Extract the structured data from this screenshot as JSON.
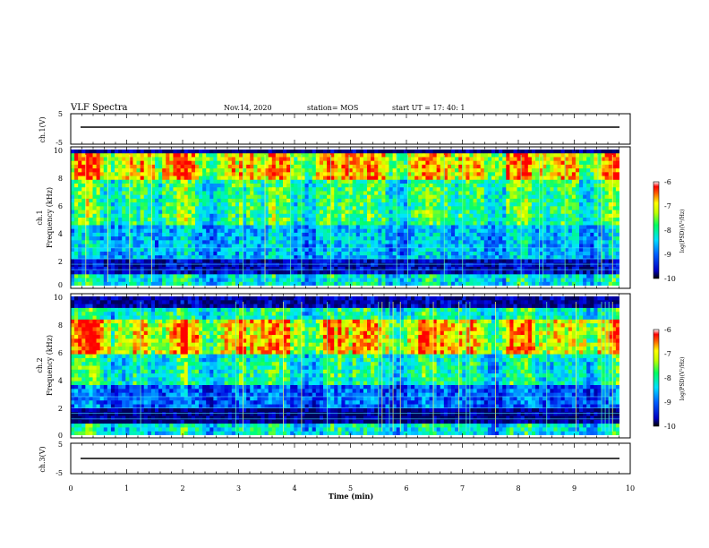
{
  "header": {
    "title": "VLF Spectra",
    "date": "Nov.14, 2020",
    "station": "station= MOS",
    "start": "start  UT =  17: 40: 1"
  },
  "chart_data": [
    {
      "type": "line",
      "panel": "ch1-waveform",
      "ylabel": "ch.1(V)",
      "ylim": [
        -5,
        5
      ],
      "y_ticks": [
        "5",
        "-5"
      ],
      "x": [
        0,
        9.83
      ],
      "values": [
        0,
        0
      ]
    },
    {
      "type": "heatmap",
      "panel": "ch1-spectrogram",
      "ylabel_line1": "ch.1",
      "ylabel_line2": "Frequency  (kHz)",
      "ylim": [
        0,
        10
      ],
      "y_ticks": [
        "0",
        "2",
        "4",
        "6",
        "8",
        "10"
      ],
      "colorbar": {
        "label": "log(PSD)(V²/Hz)",
        "range": [
          -10,
          -6
        ],
        "ticks": [
          "-6",
          "-7",
          "-8",
          "-9",
          "-10"
        ]
      }
    },
    {
      "type": "heatmap",
      "panel": "ch2-spectrogram",
      "ylabel_line1": "ch.2",
      "ylabel_line2": "Frequency  (kHz)",
      "ylim": [
        0,
        10
      ],
      "y_ticks": [
        "0",
        "2",
        "4",
        "6",
        "8",
        "10"
      ],
      "colorbar": {
        "label": "log(PSD)(V²/Hz)",
        "range": [
          -10,
          -6
        ],
        "ticks": [
          "-6",
          "-7",
          "-8",
          "-9",
          "-10"
        ]
      }
    },
    {
      "type": "line",
      "panel": "ch3-waveform",
      "ylabel": "ch.3(V)",
      "ylim": [
        -5,
        5
      ],
      "y_ticks": [
        "5",
        "-5"
      ],
      "x": [
        0,
        9.83
      ],
      "values": [
        0,
        0
      ]
    }
  ],
  "x_axis": {
    "label": "Time  (min)",
    "xlim": [
      0,
      10
    ],
    "ticks": [
      "0",
      "1",
      "2",
      "3",
      "4",
      "5",
      "6",
      "7",
      "8",
      "9",
      "10"
    ]
  },
  "colors": {
    "palette": [
      "#000080",
      "#0000ff",
      "#00b0ff",
      "#00ff80",
      "#80ff00",
      "#ffff00",
      "#ff8000",
      "#ff0000",
      "#ffffff"
    ]
  }
}
